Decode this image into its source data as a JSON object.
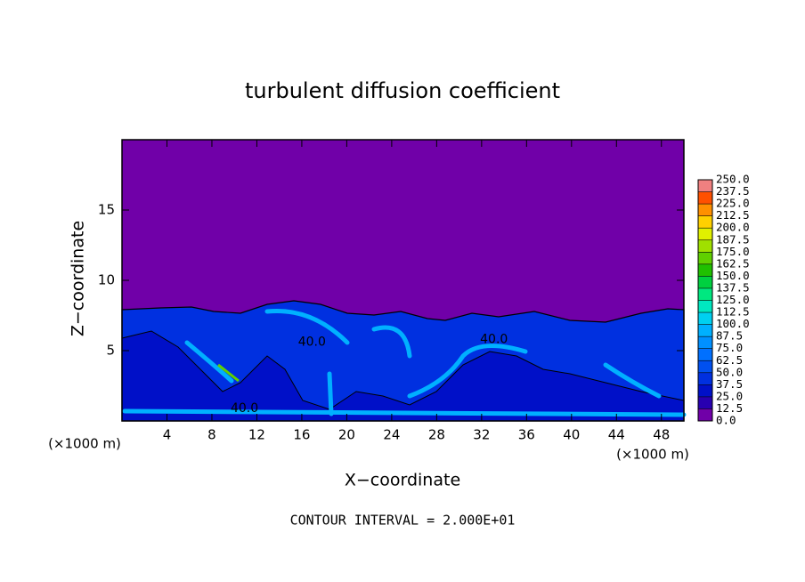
{
  "chart_data": {
    "type": "contour",
    "title": "turbulent diffusion coefficient",
    "xlabel": "X−coordinate",
    "ylabel": "Z−coordinate",
    "x_unit": "(×1000 m)",
    "y_unit": "(×1000 m)",
    "footnote": "CONTOUR INTERVAL = 2.000E+01",
    "xlim": [
      0,
      50
    ],
    "ylim": [
      0,
      20
    ],
    "xticks": [
      4,
      8,
      12,
      16,
      20,
      24,
      28,
      32,
      36,
      40,
      44,
      48
    ],
    "yticks": [
      5,
      10,
      15
    ],
    "levels": [
      {
        "value": 0,
        "label": "0.0"
      },
      {
        "value": 12.5,
        "label": "12.5"
      },
      {
        "value": 25,
        "label": "25.0"
      },
      {
        "value": 37.5,
        "label": "37.5"
      },
      {
        "value": 50,
        "label": "50.0"
      },
      {
        "value": 62.5,
        "label": "62.5"
      },
      {
        "value": 75,
        "label": "75.0"
      },
      {
        "value": 87.5,
        "label": "87.5"
      },
      {
        "value": 100,
        "label": "100.0"
      },
      {
        "value": 112.5,
        "label": "112.5"
      },
      {
        "value": 125,
        "label": "125.0"
      },
      {
        "value": 137.5,
        "label": "137.5"
      },
      {
        "value": 150,
        "label": "150.0"
      },
      {
        "value": 162.5,
        "label": "162.5"
      },
      {
        "value": 175,
        "label": "175.0"
      },
      {
        "value": 187.5,
        "label": "187.5"
      },
      {
        "value": 200,
        "label": "200.0"
      },
      {
        "value": 212.5,
        "label": "212.5"
      },
      {
        "value": 225,
        "label": "225.0"
      },
      {
        "value": 237.5,
        "label": "237.5"
      },
      {
        "value": 250,
        "label": "250.0"
      }
    ],
    "colors": [
      "#7000a8",
      "#2800b0",
      "#0010c8",
      "#0030e0",
      "#0050f0",
      "#0070ff",
      "#0090ff",
      "#00b0ff",
      "#00d0f0",
      "#00e8c0",
      "#00e880",
      "#00d040",
      "#20c000",
      "#60d000",
      "#a0e000",
      "#e0f000",
      "#ffd000",
      "#ff9000",
      "#ff5000",
      "#f08080"
    ],
    "contour_labels": [
      {
        "value": 40,
        "label": "40.0",
        "x": 16.9,
        "z": 5.6
      },
      {
        "value": 40,
        "label": "40.0",
        "x": 33.1,
        "z": 5.8
      },
      {
        "value": 40,
        "label": "40.0",
        "x": 10.9,
        "z": 0.9
      }
    ]
  }
}
